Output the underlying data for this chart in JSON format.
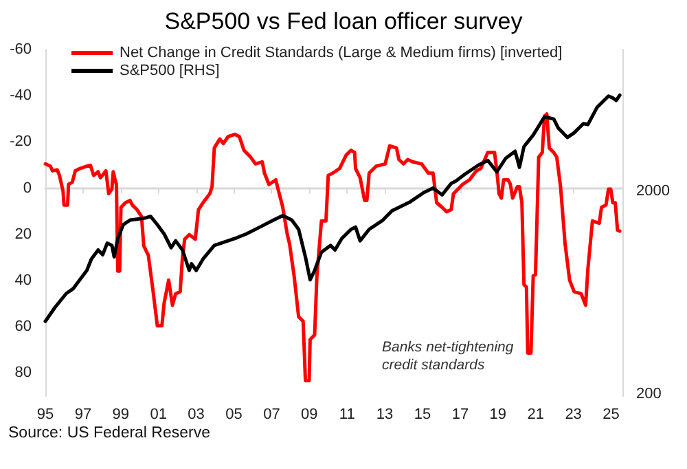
{
  "chart_data": {
    "type": "line",
    "title": "S&P500 vs Fed loan officer survey",
    "annotations": [
      "Banks net-tightening credit standards",
      "Source: US Federal Reserve"
    ],
    "xlim": [
      1995,
      2025.6
    ],
    "xticks": [
      {
        "value": 1995,
        "label": "95"
      },
      {
        "value": 1997,
        "label": "97"
      },
      {
        "value": 1999,
        "label": "99"
      },
      {
        "value": 2001,
        "label": "01"
      },
      {
        "value": 2003,
        "label": "03"
      },
      {
        "value": 2005,
        "label": "05"
      },
      {
        "value": 2007,
        "label": "07"
      },
      {
        "value": 2009,
        "label": "09"
      },
      {
        "value": 2011,
        "label": "11"
      },
      {
        "value": 2013,
        "label": "13"
      },
      {
        "value": 2015,
        "label": "15"
      },
      {
        "value": 2017,
        "label": "17"
      },
      {
        "value": 2019,
        "label": "19"
      },
      {
        "value": 2021,
        "label": "21"
      },
      {
        "value": 2023,
        "label": "23"
      },
      {
        "value": 2025,
        "label": "25"
      }
    ],
    "ylim": [
      90,
      -60
    ],
    "yticks": [
      -60,
      -40,
      -20,
      0,
      20,
      40,
      60,
      80
    ],
    "y2lim": [
      195,
      10000
    ],
    "y2ticks": [
      200,
      2000
    ],
    "log": "y2",
    "legend": "top left",
    "marker": "none",
    "line_style": "solid",
    "series": [
      {
        "name": "Net Change in Credit Standards (Large & Medium firms) [inverted]",
        "color": "#ff0000",
        "x": [
          1995.0,
          1995.27,
          1995.38,
          1995.63,
          1995.75,
          1995.94,
          1995.99,
          1996.18,
          1996.23,
          1996.43,
          1996.59,
          1996.83,
          1997.2,
          1997.39,
          1997.56,
          1997.8,
          1997.92,
          1998.12,
          1998.21,
          1998.36,
          1998.53,
          1998.6,
          1998.7,
          1998.77,
          1998.84,
          1998.94,
          1999.01,
          1999.25,
          1999.49,
          1999.61,
          1999.86,
          2000.1,
          2000.22,
          2000.46,
          2000.7,
          2000.94,
          2001.18,
          2001.3,
          2001.54,
          2001.74,
          2001.91,
          2002.15,
          2002.27,
          2002.39,
          2002.63,
          2002.95,
          2003.12,
          2003.36,
          2003.72,
          2003.84,
          2003.96,
          2004.25,
          2004.44,
          2004.69,
          2005.05,
          2005.29,
          2005.53,
          2005.89,
          2006.14,
          2006.5,
          2006.62,
          2006.86,
          2007.22,
          2007.34,
          2007.59,
          2007.83,
          2007.95,
          2008.19,
          2008.43,
          2008.67,
          2008.79,
          2008.99,
          2009.04,
          2009.28,
          2009.4,
          2009.64,
          2009.88,
          2010.0,
          2010.24,
          2010.6,
          2010.96,
          2011.21,
          2011.4,
          2011.45,
          2011.69,
          2011.93,
          2012.05,
          2012.17,
          2012.54,
          2013.02,
          2013.26,
          2013.62,
          2013.75,
          2013.99,
          2014.22,
          2014.47,
          2014.95,
          2015.31,
          2015.56,
          2015.75,
          2016.04,
          2016.28,
          2016.52,
          2016.64,
          2016.88,
          2017.12,
          2017.49,
          2017.85,
          2018.09,
          2018.46,
          2018.82,
          2018.94,
          2019.06,
          2019.18,
          2019.3,
          2019.54,
          2019.66,
          2019.78,
          2020.03,
          2020.14,
          2020.27,
          2020.38,
          2020.51,
          2020.58,
          2020.75,
          2020.87,
          2020.99,
          2021.16,
          2021.35,
          2021.47,
          2021.59,
          2021.72,
          2021.96,
          2022.12,
          2022.32,
          2022.56,
          2022.8,
          2023.04,
          2023.41,
          2023.65,
          2023.77,
          2024.01,
          2024.37,
          2024.49,
          2024.73,
          2024.86,
          2024.98,
          2025.09,
          2025.22,
          2025.34,
          2025.46
        ],
        "values": [
          -10.5,
          -9.5,
          -7.5,
          -7.9,
          -5.5,
          1.4,
          7.3,
          7.3,
          -1.6,
          -2.6,
          -7.5,
          -8.5,
          -9.5,
          -9.9,
          -5.5,
          -7.1,
          -4.5,
          -6.5,
          -7.5,
          2.4,
          0.4,
          -7.1,
          -3.6,
          -1.6,
          35.9,
          35.9,
          8.3,
          6.3,
          5.3,
          7.3,
          9.3,
          12.2,
          25.0,
          29.0,
          43.8,
          59.6,
          59.6,
          49.7,
          39.8,
          50.7,
          45.7,
          44.8,
          30.0,
          22.1,
          20.1,
          22.1,
          9.3,
          6.3,
          2.4,
          -0.6,
          -17.4,
          -21.3,
          -19.3,
          -22.3,
          -23.3,
          -22.3,
          -16.4,
          -13.4,
          -10.5,
          -11.4,
          -6.5,
          -1.6,
          -3.6,
          0.4,
          8.3,
          20.1,
          24.1,
          37.9,
          55.6,
          57.6,
          83.3,
          83.3,
          65.5,
          63.5,
          37.9,
          14.2,
          14.2,
          -5.5,
          -6.5,
          -8.5,
          -14.4,
          -16.4,
          -15.4,
          -8.5,
          -4.5,
          5.3,
          5.3,
          -6.5,
          -9.5,
          -10.5,
          -18.3,
          -17.4,
          -12.4,
          -10.5,
          -12.4,
          -11.4,
          -10.5,
          -6.5,
          -6.5,
          6.3,
          8.3,
          10.2,
          9.3,
          2.4,
          0.4,
          -1.6,
          -3.6,
          -7.5,
          -8.5,
          -15.4,
          -15.4,
          -7.5,
          2.4,
          4.3,
          -3.6,
          -3.6,
          -1.6,
          4.3,
          -0.6,
          -0.6,
          6.3,
          41.8,
          42.8,
          71.4,
          71.4,
          37.9,
          37.5,
          -13.4,
          -15.4,
          -31.2,
          -32.1,
          -17.4,
          -15.4,
          -13.4,
          -0.6,
          24.1,
          39.8,
          44.8,
          45.7,
          50.7,
          34.9,
          14.2,
          15.2,
          8.3,
          7.3,
          0.4,
          0.4,
          6.3,
          6.3,
          18.2,
          18.6
        ]
      },
      {
        "name": "S&P500 [RHS]",
        "color": "#000000",
        "axis": "y2",
        "x": [
          1995.0,
          1995.51,
          1996.11,
          1996.47,
          1996.83,
          1997.2,
          1997.44,
          1997.8,
          1998.04,
          1998.28,
          1998.53,
          1998.65,
          1998.84,
          1999.13,
          1999.49,
          1999.86,
          2000.34,
          2000.58,
          2000.94,
          2001.3,
          2001.67,
          2001.91,
          2002.27,
          2002.63,
          2002.75,
          2003.0,
          2003.36,
          2003.96,
          2004.69,
          2005.17,
          2005.65,
          2006.38,
          2007.1,
          2007.59,
          2008.07,
          2008.43,
          2008.79,
          2009.04,
          2009.28,
          2009.64,
          2010.12,
          2010.36,
          2010.72,
          2011.21,
          2011.45,
          2011.69,
          2012.17,
          2012.9,
          2013.38,
          2014.35,
          2015.07,
          2015.56,
          2016.04,
          2016.52,
          2016.77,
          2017.25,
          2017.97,
          2018.46,
          2018.94,
          2019.42,
          2019.91,
          2020.14,
          2020.38,
          2020.87,
          2021.47,
          2021.96,
          2022.2,
          2022.68,
          2023.04,
          2023.53,
          2023.77,
          2024.25,
          2024.86,
          2025.09,
          2025.27,
          2025.46
        ],
        "values": [
          456,
          534,
          626,
          660,
          731,
          813,
          925,
          1026,
          972,
          1108,
          1080,
          948,
          1169,
          1367,
          1440,
          1455,
          1478,
          1502,
          1367,
          1230,
          1052,
          1138,
          1026,
          813,
          877,
          813,
          925,
          1080,
          1138,
          1180,
          1230,
          1331,
          1440,
          1516,
          1440,
          1297,
          948,
          731,
          813,
          1000,
          1080,
          1026,
          1169,
          1297,
          1331,
          1138,
          1297,
          1440,
          1600,
          1773,
          1969,
          2073,
          1918,
          2184,
          2244,
          2427,
          2691,
          2838,
          2490,
          2911,
          3149,
          2624,
          3318,
          3784,
          4659,
          4540,
          4094,
          3683,
          3882,
          4308,
          4264,
          5176,
          5890,
          5770,
          5605,
          5957
        ]
      }
    ]
  }
}
